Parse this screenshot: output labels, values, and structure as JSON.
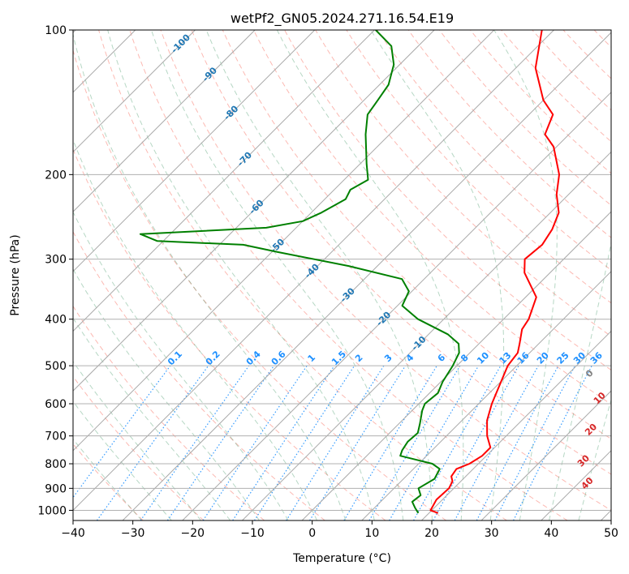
{
  "chart_data": {
    "type": "skew-t",
    "title": "wetPf2_GN05.2024.271.16.54.E19",
    "xlabel": "Temperature (°C)",
    "ylabel": "Pressure (hPa)",
    "xlim": [
      -40,
      50
    ],
    "ylim": [
      1050,
      100
    ],
    "y_scale": "log",
    "x_ticks": [
      "−40",
      "−30",
      "−20",
      "−10",
      "0",
      "10",
      "20",
      "30",
      "40",
      "50"
    ],
    "y_ticks": [
      "100",
      "200",
      "300",
      "400",
      "500",
      "600",
      "700",
      "800",
      "900",
      "1000"
    ],
    "grid": true,
    "colors": {
      "temperature": "#ff0000",
      "dewpoint": "#008000",
      "isotherm_labels": "#1f77b4",
      "mixing_ratio": "#1e90ff",
      "moist_adiabat_labels": "#d62728",
      "dry_adiabat": "#fa8072",
      "moist_adiabat": "#2e8b57",
      "lcl_label": "#808080"
    },
    "isotherm_labels": [
      "-100",
      "-90",
      "-80",
      "-70",
      "-60",
      "-50",
      "-40",
      "-30",
      "-20",
      "-10"
    ],
    "mixing_ratio_labels": [
      "0.1",
      "0.2",
      "0.4",
      "0.6",
      "1",
      "1.5",
      "2",
      "3",
      "4",
      "6",
      "8",
      "10",
      "13",
      "16",
      "20",
      "25",
      "30",
      "36"
    ],
    "moist_adiabat_labels": [
      "0",
      "10",
      "20",
      "30",
      "40"
    ],
    "series": [
      {
        "name": "",
        "role": "temperature",
        "points": [
          [
            1013,
            21.5
          ],
          [
            1000,
            19.8
          ],
          [
            950,
            19.0
          ],
          [
            900,
            19.2
          ],
          [
            870,
            18.6
          ],
          [
            850,
            17.6
          ],
          [
            820,
            17.2
          ],
          [
            800,
            18.5
          ],
          [
            770,
            19.3
          ],
          [
            740,
            19.3
          ],
          [
            700,
            16.8
          ],
          [
            650,
            14.2
          ],
          [
            600,
            12.2
          ],
          [
            560,
            10.8
          ],
          [
            500,
            8.5
          ],
          [
            470,
            8.0
          ],
          [
            450,
            6.8
          ],
          [
            420,
            4.8
          ],
          [
            400,
            4.2
          ],
          [
            360,
            1.8
          ],
          [
            320,
            -4.3
          ],
          [
            300,
            -6.5
          ],
          [
            280,
            -6.0
          ],
          [
            260,
            -6.9
          ],
          [
            240,
            -8.6
          ],
          [
            220,
            -12.0
          ],
          [
            200,
            -14.9
          ],
          [
            175,
            -20.5
          ],
          [
            165,
            -24.0
          ],
          [
            150,
            -26.0
          ],
          [
            140,
            -30.0
          ],
          [
            120,
            -36.7
          ],
          [
            100,
            -42.0
          ]
        ]
      },
      {
        "name": "",
        "role": "dewpoint",
        "points": [
          [
            1013,
            18.2
          ],
          [
            990,
            16.9
          ],
          [
            960,
            15.3
          ],
          [
            930,
            15.6
          ],
          [
            900,
            14.1
          ],
          [
            860,
            15.2
          ],
          [
            820,
            14.4
          ],
          [
            800,
            12.3
          ],
          [
            770,
            5.6
          ],
          [
            750,
            5.0
          ],
          [
            720,
            4.5
          ],
          [
            690,
            4.7
          ],
          [
            660,
            3.5
          ],
          [
            620,
            1.7
          ],
          [
            600,
            1.0
          ],
          [
            570,
            1.4
          ],
          [
            540,
            0.3
          ],
          [
            500,
            -0.7
          ],
          [
            470,
            -1.8
          ],
          [
            450,
            -3.4
          ],
          [
            430,
            -6.8
          ],
          [
            400,
            -14.3
          ],
          [
            375,
            -19.2
          ],
          [
            350,
            -20.5
          ],
          [
            330,
            -23.7
          ],
          [
            310,
            -34.8
          ],
          [
            290,
            -49.0
          ],
          [
            280,
            -56.0
          ],
          [
            275,
            -71.0
          ],
          [
            266,
            -75.0
          ],
          [
            258,
            -55.0
          ],
          [
            250,
            -50.0
          ],
          [
            240,
            -48.3
          ],
          [
            225,
            -46.5
          ],
          [
            215,
            -47.3
          ],
          [
            205,
            -46.0
          ],
          [
            190,
            -48.9
          ],
          [
            165,
            -54.0
          ],
          [
            150,
            -57.0
          ],
          [
            140,
            -57.7
          ],
          [
            130,
            -58.5
          ],
          [
            118,
            -61.0
          ],
          [
            108,
            -64.5
          ],
          [
            100,
            -69.8
          ]
        ]
      }
    ]
  }
}
